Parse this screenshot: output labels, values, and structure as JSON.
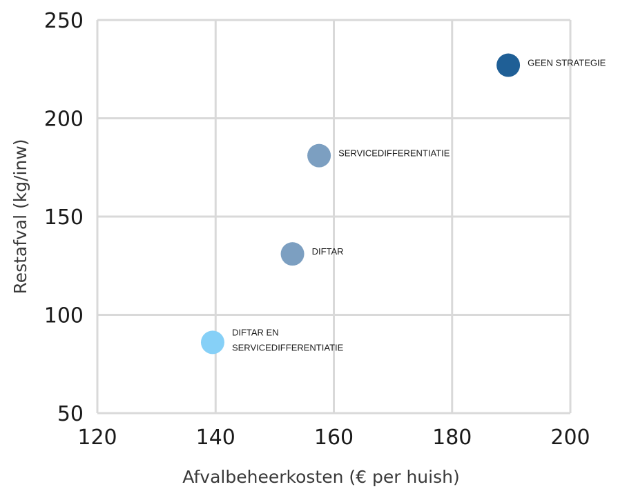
{
  "chart_data": {
    "type": "scatter",
    "xlabel": "Afvalbeheerkosten (€ per huish)",
    "ylabel": "Restafval (kg/inw)",
    "xlim": [
      120,
      200
    ],
    "ylim": [
      50,
      250
    ],
    "xticks": [
      120,
      140,
      160,
      180,
      200
    ],
    "yticks": [
      50,
      100,
      150,
      200,
      250
    ],
    "grid": true,
    "points": [
      {
        "x": 189.5,
        "y": 227,
        "label": [
          "GEEN STRATEGIE"
        ],
        "color": "#1f5f96"
      },
      {
        "x": 157.5,
        "y": 181,
        "label": [
          "SERVICEDIFFERENTIATIE"
        ],
        "color": "#7c9fc1"
      },
      {
        "x": 153,
        "y": 131,
        "label": [
          "DIFTAR"
        ],
        "color": "#7c9fc1"
      },
      {
        "x": 139.5,
        "y": 86,
        "label": [
          "DIFTAR EN",
          "SERVICEDIFFERENTIATIE"
        ],
        "color": "#86d0f7"
      }
    ]
  }
}
